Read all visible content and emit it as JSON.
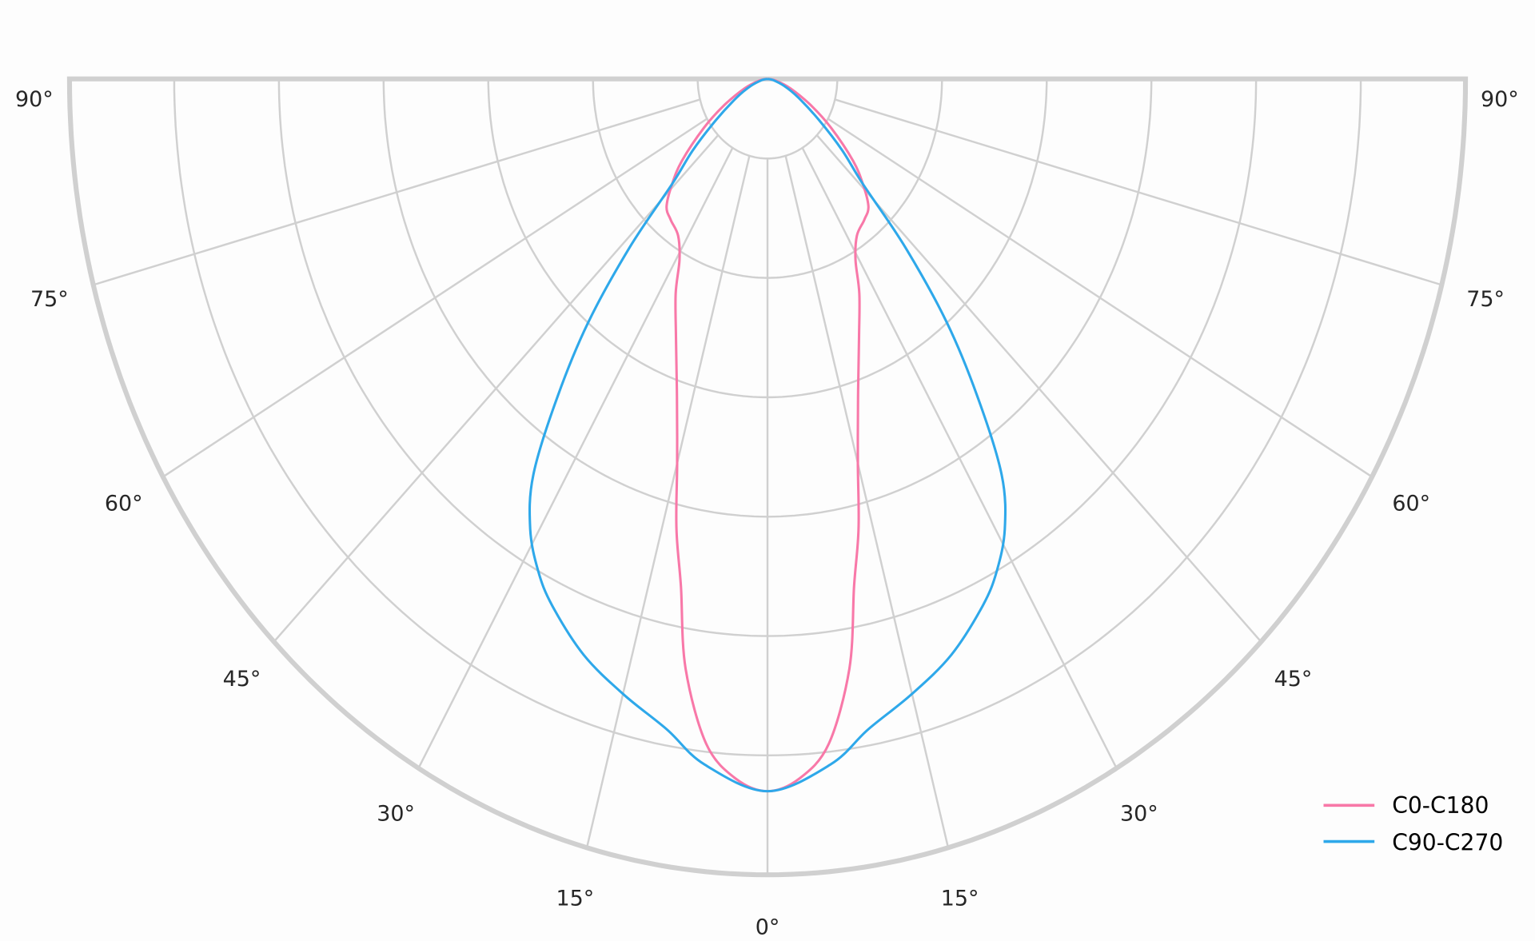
{
  "chart_data": {
    "type": "polar",
    "title": "",
    "angle_unit": "degrees",
    "angle_ticks": [
      0,
      15,
      30,
      45,
      60,
      75,
      90
    ],
    "angle_tick_labels": [
      "0°",
      "15°",
      "30°",
      "45°",
      "60°",
      "75°",
      "90°"
    ],
    "rlim": [
      0,
      1
    ],
    "grid": true,
    "legend_position": "bottom-right",
    "symmetric": true,
    "series": [
      {
        "name": "C0-C180",
        "color": "#f878a8",
        "angles": [
          0,
          3,
          6,
          9,
          11,
          13,
          15,
          18,
          22,
          26,
          29,
          33,
          38,
          42,
          46,
          50,
          56,
          62,
          70,
          80,
          90
        ],
        "values": [
          0.895,
          0.88,
          0.84,
          0.75,
          0.65,
          0.58,
          0.5,
          0.42,
          0.35,
          0.3,
          0.26,
          0.235,
          0.225,
          0.216,
          0.19,
          0.16,
          0.11,
          0.07,
          0.035,
          0.012,
          0
        ]
      },
      {
        "name": "C90-C270",
        "color": "#2ea8ea",
        "angles": [
          0,
          6,
          10,
          15,
          20,
          25,
          28,
          31,
          34,
          37,
          40,
          43,
          46,
          50,
          55,
          62,
          70,
          80,
          90
        ],
        "values": [
          0.895,
          0.866,
          0.83,
          0.8,
          0.77,
          0.73,
          0.7,
          0.66,
          0.6,
          0.5,
          0.4,
          0.29,
          0.19,
          0.14,
          0.09,
          0.05,
          0.025,
          0.008,
          0
        ]
      }
    ]
  }
}
